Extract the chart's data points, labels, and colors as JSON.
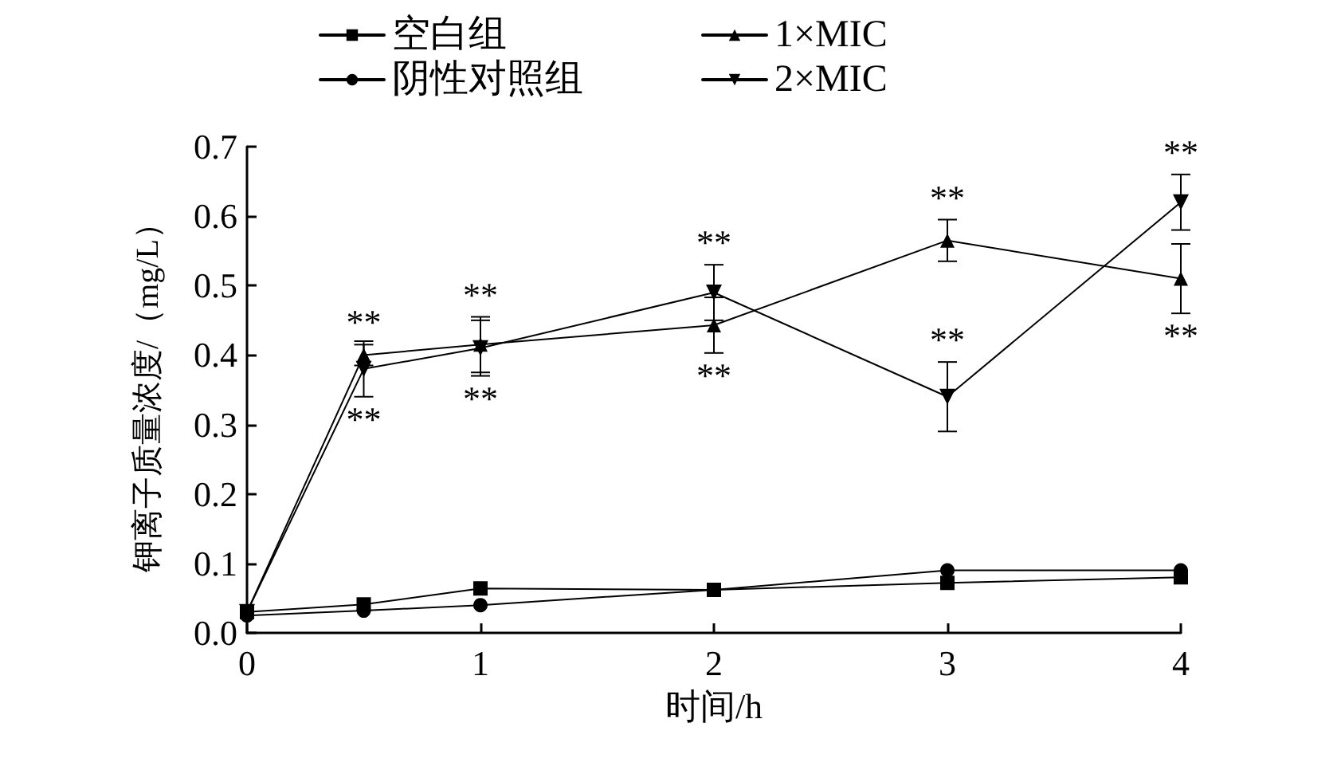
{
  "chart_data": {
    "type": "line",
    "xlabel": "时间/h",
    "ylabel": "钾离子质量浓度/（mg/L）",
    "x": [
      0,
      0.5,
      1,
      2,
      3,
      4
    ],
    "xlim": [
      0,
      4
    ],
    "xticks": [
      0,
      1,
      2,
      3,
      4
    ],
    "ylim": [
      0,
      0.7
    ],
    "yticks": [
      {
        "value": 0,
        "label": "0.0"
      },
      0.1,
      0.2,
      0.3,
      0.4,
      0.5,
      0.6,
      0.7
    ],
    "grid": false,
    "legend": "top",
    "line_style": "solid",
    "series": [
      {
        "name": "空白组",
        "color": "#000000",
        "marker": "square",
        "values": [
          0.03,
          0.041,
          0.064,
          0.062,
          0.072,
          0.08
        ],
        "errors": [
          null,
          null,
          null,
          null,
          null,
          null
        ]
      },
      {
        "name": "阴性对照组",
        "color": "#000000",
        "marker": "circle",
        "values": [
          0.025,
          0.032,
          0.04,
          0.062,
          0.09,
          0.09
        ],
        "errors": [
          null,
          null,
          null,
          null,
          null,
          null
        ]
      },
      {
        "name": "1×MIC",
        "color": "#000000",
        "marker": "triangle",
        "values": [
          0.03,
          0.4,
          0.415,
          0.443,
          0.565,
          0.51
        ],
        "errors": [
          null,
          0.015,
          0.04,
          0.04,
          0.03,
          0.05
        ]
      },
      {
        "name": "2×MIC",
        "color": "#000000",
        "marker": "triangle-down",
        "values": [
          0.03,
          0.38,
          0.41,
          0.49,
          0.34,
          0.62
        ],
        "errors": [
          null,
          0.04,
          0.04,
          0.04,
          0.05,
          0.04
        ]
      }
    ],
    "annotations": [
      {
        "text": "**",
        "x": 0.5,
        "y": 0.4
      },
      {
        "text": "**",
        "x": 0.5,
        "y": 0.38
      },
      {
        "text": "**",
        "x": 1,
        "y": 0.415
      },
      {
        "text": "**",
        "x": 1,
        "y": 0.41
      },
      {
        "text": "**",
        "x": 2,
        "y": 0.49
      },
      {
        "text": "**",
        "x": 2,
        "y": 0.443
      },
      {
        "text": "**",
        "x": 3,
        "y": 0.565
      },
      {
        "text": "**",
        "x": 3,
        "y": 0.34
      },
      {
        "text": "**",
        "x": 4,
        "y": 0.62
      },
      {
        "text": "**",
        "x": 4,
        "y": 0.51
      }
    ]
  }
}
